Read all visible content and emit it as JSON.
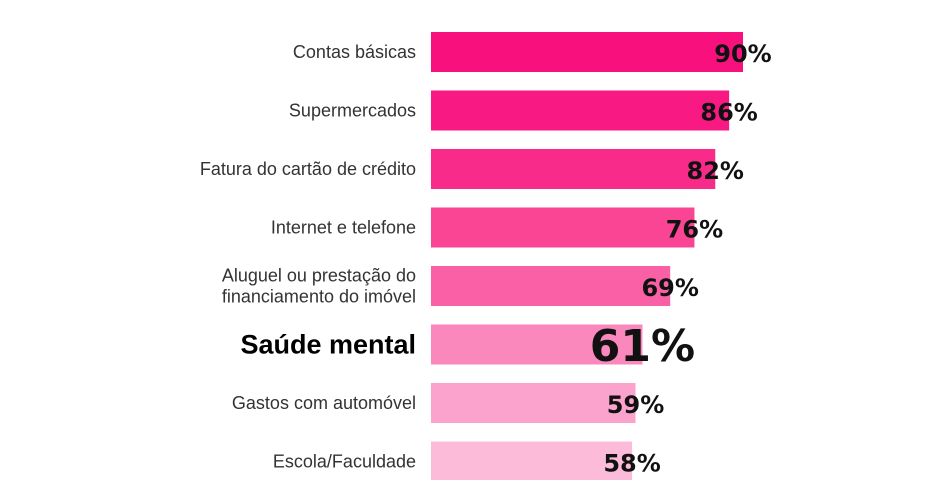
{
  "chart_data": {
    "type": "bar",
    "orientation": "horizontal",
    "categories": [
      "Contas básicas",
      "Supermercados",
      "Fatura do cartão de crédito",
      "Internet e telefone",
      "Aluguel ou prestação do financiamento do imóvel",
      "Saúde mental",
      "Gastos com automóvel",
      "Escola/Faculdade"
    ],
    "category_lines": [
      [
        "Contas básicas"
      ],
      [
        "Supermercados"
      ],
      [
        "Fatura do cartão de crédito"
      ],
      [
        "Internet e telefone"
      ],
      [
        "Aluguel ou prestação do",
        "financiamento do imóvel"
      ],
      [
        "Saúde mental"
      ],
      [
        "Gastos com automóvel"
      ],
      [
        "Escola/Faculdade"
      ]
    ],
    "values": [
      90,
      86,
      82,
      76,
      69,
      61,
      59,
      58
    ],
    "value_labels": [
      "90%",
      "86%",
      "82%",
      "76%",
      "69%",
      "61%",
      "59%",
      "58%"
    ],
    "highlighted_category": "Saúde mental",
    "colors": [
      "#f8107c",
      "#f81a82",
      "#f82a8a",
      "#fa4494",
      "#fa60a5",
      "#fb88bc",
      "#fba3cc",
      "#fcbbd9"
    ],
    "xlim": [
      0,
      100
    ],
    "grid": false,
    "legend": "none"
  }
}
